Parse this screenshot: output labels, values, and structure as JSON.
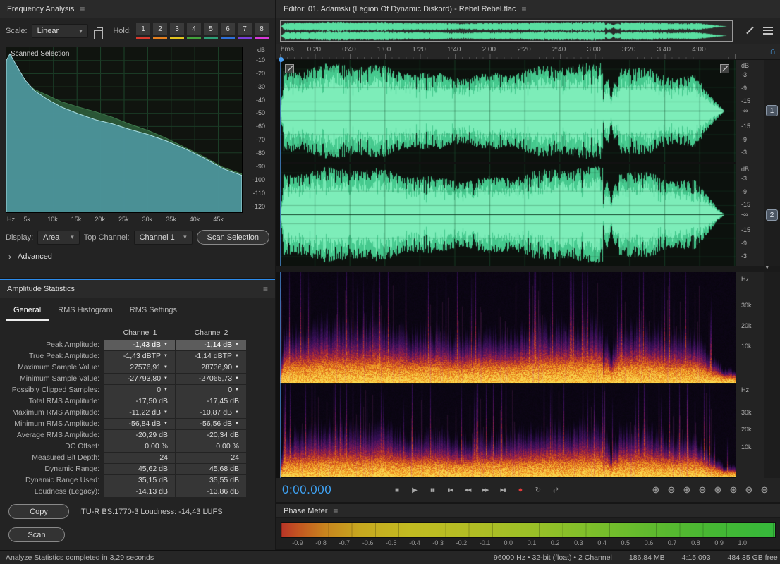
{
  "colors": {
    "accent": "#2d8ceb",
    "waveform_green": "#5adf9f",
    "record_red": "#e03a3a"
  },
  "icons": {
    "menu": "≡",
    "dropdown": "▾",
    "chevron_right": "›",
    "pin": "▼",
    "collapse": "▾",
    "snap": "∩"
  },
  "frequency_panel": {
    "title": "Frequency Analysis",
    "scale_label": "Scale:",
    "scale_value": "Linear",
    "hold_label": "Hold:",
    "hold_buttons": [
      {
        "label": "1",
        "color": "#d93a2e"
      },
      {
        "label": "2",
        "color": "#e5801f"
      },
      {
        "label": "3",
        "color": "#e3c51f"
      },
      {
        "label": "4",
        "color": "#43a33c"
      },
      {
        "label": "5",
        "color": "#2e9e77"
      },
      {
        "label": "6",
        "color": "#2e6fd9"
      },
      {
        "label": "7",
        "color": "#7a3fd9"
      },
      {
        "label": "8",
        "color": "#d93ad9"
      }
    ],
    "graph": {
      "overlay_label": "Scanned Selection",
      "db_ticks": [
        "dB",
        "-10",
        "-20",
        "-30",
        "-40",
        "-50",
        "-60",
        "-70",
        "-80",
        "-90",
        "-100",
        "-110",
        "-120"
      ],
      "hz_ticks": [
        "Hz",
        "5k",
        "10k",
        "15k",
        "20k",
        "25k",
        "30k",
        "35k",
        "40k",
        "45k"
      ],
      "curve_ch1_db": [
        [
          0,
          -10
        ],
        [
          0.015,
          -5
        ],
        [
          0.04,
          -13
        ],
        [
          0.08,
          -25
        ],
        [
          0.12,
          -33
        ],
        [
          0.17,
          -39
        ],
        [
          0.23,
          -45
        ],
        [
          0.3,
          -50
        ],
        [
          0.38,
          -55
        ],
        [
          0.45,
          -58
        ],
        [
          0.52,
          -62
        ],
        [
          0.6,
          -66
        ],
        [
          0.68,
          -71
        ],
        [
          0.76,
          -77
        ],
        [
          0.84,
          -84
        ],
        [
          0.92,
          -92
        ],
        [
          1,
          -97
        ]
      ],
      "curve_ch2_db": [
        [
          0,
          -12
        ],
        [
          0.015,
          -7
        ],
        [
          0.04,
          -15
        ],
        [
          0.08,
          -27
        ],
        [
          0.12,
          -32
        ],
        [
          0.17,
          -36
        ],
        [
          0.23,
          -41
        ],
        [
          0.3,
          -45
        ],
        [
          0.38,
          -49
        ],
        [
          0.45,
          -53
        ],
        [
          0.52,
          -58
        ],
        [
          0.6,
          -63
        ],
        [
          0.68,
          -69
        ],
        [
          0.76,
          -76
        ],
        [
          0.84,
          -83
        ],
        [
          0.92,
          -91
        ],
        [
          1,
          -96
        ]
      ]
    },
    "display_label": "Display:",
    "display_value": "Area",
    "top_channel_label": "Top Channel:",
    "top_channel_value": "Channel 1",
    "scan_selection_button": "Scan Selection",
    "advanced_label": "Advanced"
  },
  "amplitude_panel": {
    "title": "Amplitude Statistics",
    "tabs": [
      "General",
      "RMS Histogram",
      "RMS Settings"
    ],
    "active_tab": "General",
    "columns": [
      "Channel 1",
      "Channel 2"
    ],
    "rows": [
      {
        "label": "Peak Amplitude:",
        "ch1": "-1,43 dB",
        "ch2": "-1,14 dB",
        "arrow": true,
        "highlight": true
      },
      {
        "label": "True Peak Amplitude:",
        "ch1": "-1,43 dBTP",
        "ch2": "-1,14 dBTP",
        "arrow": true
      },
      {
        "label": "Maximum Sample Value:",
        "ch1": "27576,91",
        "ch2": "28736,90",
        "arrow": true
      },
      {
        "label": "Minimum Sample Value:",
        "ch1": "-27793,80",
        "ch2": "-27065,73",
        "arrow": true
      },
      {
        "label": "Possibly Clipped Samples:",
        "ch1": "0",
        "ch2": "0",
        "arrow": true
      },
      {
        "label": "Total RMS Amplitude:",
        "ch1": "-17,50 dB",
        "ch2": "-17,45 dB",
        "arrow": false
      },
      {
        "label": "Maximum RMS Amplitude:",
        "ch1": "-11,22 dB",
        "ch2": "-10,87 dB",
        "arrow": true
      },
      {
        "label": "Minimum RMS Amplitude:",
        "ch1": "-56,84 dB",
        "ch2": "-56,56 dB",
        "arrow": true
      },
      {
        "label": "Average RMS Amplitude:",
        "ch1": "-20,29 dB",
        "ch2": "-20,34 dB",
        "arrow": false
      },
      {
        "label": "DC Offset:",
        "ch1": "0,00 %",
        "ch2": "0,00 %",
        "arrow": false
      },
      {
        "label": "Measured Bit Depth:",
        "ch1": "24",
        "ch2": "24",
        "arrow": false
      },
      {
        "label": "Dynamic Range:",
        "ch1": "45,62 dB",
        "ch2": "45,68 dB",
        "arrow": false
      },
      {
        "label": "Dynamic Range Used:",
        "ch1": "35,15 dB",
        "ch2": "35,55 dB",
        "arrow": false
      },
      {
        "label": "Loudness (Legacy):",
        "ch1": "-14.13 dB",
        "ch2": "-13.86 dB",
        "arrow": false
      }
    ],
    "copy_button": "Copy",
    "loudness_note": "ITU-R BS.1770-3 Loudness:  -14,43 LUFS",
    "scan_button": "Scan"
  },
  "editor": {
    "title": "Editor: 01. Adamski (Legion Of Dynamic Diskord) - Rebel Rebel.flac",
    "ruler_ticks": [
      "hms",
      "0:20",
      "0:40",
      "1:00",
      "1:20",
      "1:40",
      "2:00",
      "2:20",
      "2:40",
      "3:00",
      "3:20",
      "3:40",
      "4:00"
    ],
    "db_scale": [
      "dB",
      "-3",
      "-9",
      "-15",
      "-∞",
      "-15",
      "-9",
      "-3"
    ],
    "hz_scale": [
      "Hz",
      "30k",
      "20k",
      "10k"
    ],
    "channel_buttons": [
      "1",
      "2"
    ]
  },
  "transport": {
    "time": "0:00.000",
    "buttons": [
      {
        "name": "stop",
        "glyph": "■"
      },
      {
        "name": "play",
        "glyph": "▶"
      },
      {
        "name": "pause",
        "glyph": "▮▮",
        "cls": "sm"
      },
      {
        "name": "skip-to-start",
        "glyph": "▮◀",
        "cls": "sm"
      },
      {
        "name": "rewind",
        "glyph": "◀◀",
        "cls": "sm"
      },
      {
        "name": "fast-forward",
        "glyph": "▶▶",
        "cls": "sm"
      },
      {
        "name": "skip-to-end",
        "glyph": "▶▮",
        "cls": "sm"
      },
      {
        "name": "record",
        "glyph": "●",
        "cls": "record"
      },
      {
        "name": "loop-playback",
        "glyph": "↻"
      },
      {
        "name": "skip-selection",
        "glyph": "⇄"
      }
    ],
    "zoom_buttons": [
      {
        "name": "zoom-in",
        "glyph": "⊕"
      },
      {
        "name": "zoom-out",
        "glyph": "⊖"
      },
      {
        "name": "zoom-in-vertical",
        "glyph": "⊕"
      },
      {
        "name": "zoom-out-vertical",
        "glyph": "⊖"
      },
      {
        "name": "zoom-in-left-selection",
        "glyph": "⊕"
      },
      {
        "name": "zoom-in-right-selection",
        "glyph": "⊕"
      },
      {
        "name": "zoom-to-selection",
        "glyph": "⊖"
      },
      {
        "name": "zoom-reset",
        "glyph": "⊖"
      }
    ]
  },
  "phase_meter": {
    "title": "Phase Meter",
    "ticks": [
      "-0.9",
      "-0.8",
      "-0.7",
      "-0.6",
      "-0.5",
      "-0.4",
      "-0.3",
      "-0.2",
      "-0.1",
      "0.0",
      "0.1",
      "0.2",
      "0.3",
      "0.4",
      "0.5",
      "0.6",
      "0.7",
      "0.8",
      "0.9",
      "1.0"
    ]
  },
  "status_bar": {
    "left_text": "Analyze Statistics completed in 3,29 seconds",
    "format_text": "96000 Hz • 32-bit (float) • 2 Channel",
    "size_text": "186,84 MB",
    "duration_text": "4:15.093",
    "free_text": "484,35 GB free"
  }
}
